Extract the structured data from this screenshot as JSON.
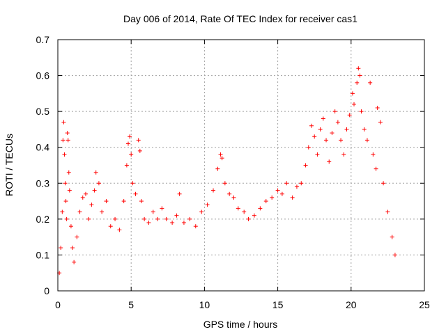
{
  "chart_data": {
    "type": "scatter",
    "title": "Day 006 of 2014, Rate Of TEC Index for receiver cas1",
    "xlabel": "GPS time / hours",
    "ylabel": "ROTI / TECUs",
    "xlim": [
      0,
      25
    ],
    "ylim": [
      0,
      0.7
    ],
    "xticks": [
      0,
      5,
      10,
      15,
      20,
      25
    ],
    "yticks": [
      0,
      0.1,
      0.2,
      0.3,
      0.4,
      0.5,
      0.6,
      0.7
    ],
    "grid": true,
    "marker": "+",
    "color": "#ff0000",
    "series": [
      {
        "name": "cas1",
        "points": [
          [
            0.1,
            0.05
          ],
          [
            0.2,
            0.12
          ],
          [
            0.3,
            0.22
          ],
          [
            0.35,
            0.42
          ],
          [
            0.4,
            0.47
          ],
          [
            0.45,
            0.38
          ],
          [
            0.5,
            0.3
          ],
          [
            0.55,
            0.25
          ],
          [
            0.6,
            0.2
          ],
          [
            0.65,
            0.44
          ],
          [
            0.7,
            0.42
          ],
          [
            0.75,
            0.33
          ],
          [
            0.8,
            0.28
          ],
          [
            0.9,
            0.18
          ],
          [
            1.0,
            0.12
          ],
          [
            1.1,
            0.08
          ],
          [
            1.3,
            0.15
          ],
          [
            1.5,
            0.22
          ],
          [
            1.7,
            0.26
          ],
          [
            1.9,
            0.27
          ],
          [
            2.1,
            0.2
          ],
          [
            2.3,
            0.24
          ],
          [
            2.5,
            0.28
          ],
          [
            2.6,
            0.33
          ],
          [
            2.8,
            0.3
          ],
          [
            3.0,
            0.22
          ],
          [
            3.3,
            0.25
          ],
          [
            3.6,
            0.18
          ],
          [
            3.9,
            0.2
          ],
          [
            4.2,
            0.17
          ],
          [
            4.5,
            0.25
          ],
          [
            4.7,
            0.35
          ],
          [
            4.8,
            0.41
          ],
          [
            4.9,
            0.43
          ],
          [
            5.0,
            0.38
          ],
          [
            5.1,
            0.3
          ],
          [
            5.3,
            0.27
          ],
          [
            5.5,
            0.42
          ],
          [
            5.6,
            0.39
          ],
          [
            5.7,
            0.25
          ],
          [
            5.9,
            0.2
          ],
          [
            6.2,
            0.19
          ],
          [
            6.5,
            0.22
          ],
          [
            6.8,
            0.2
          ],
          [
            7.1,
            0.23
          ],
          [
            7.4,
            0.2
          ],
          [
            7.8,
            0.19
          ],
          [
            8.1,
            0.21
          ],
          [
            8.3,
            0.27
          ],
          [
            8.6,
            0.19
          ],
          [
            9.0,
            0.2
          ],
          [
            9.4,
            0.18
          ],
          [
            9.8,
            0.22
          ],
          [
            10.2,
            0.24
          ],
          [
            10.6,
            0.28
          ],
          [
            10.9,
            0.34
          ],
          [
            11.1,
            0.38
          ],
          [
            11.2,
            0.37
          ],
          [
            11.4,
            0.3
          ],
          [
            11.7,
            0.27
          ],
          [
            12.0,
            0.26
          ],
          [
            12.3,
            0.23
          ],
          [
            12.7,
            0.22
          ],
          [
            13.0,
            0.2
          ],
          [
            13.4,
            0.21
          ],
          [
            13.8,
            0.23
          ],
          [
            14.2,
            0.25
          ],
          [
            14.6,
            0.26
          ],
          [
            15.0,
            0.28
          ],
          [
            15.3,
            0.27
          ],
          [
            15.6,
            0.3
          ],
          [
            16.0,
            0.26
          ],
          [
            16.3,
            0.29
          ],
          [
            16.6,
            0.3
          ],
          [
            16.9,
            0.35
          ],
          [
            17.1,
            0.4
          ],
          [
            17.3,
            0.46
          ],
          [
            17.5,
            0.43
          ],
          [
            17.7,
            0.38
          ],
          [
            17.9,
            0.45
          ],
          [
            18.1,
            0.48
          ],
          [
            18.3,
            0.42
          ],
          [
            18.5,
            0.36
          ],
          [
            18.7,
            0.44
          ],
          [
            18.9,
            0.5
          ],
          [
            19.1,
            0.47
          ],
          [
            19.3,
            0.42
          ],
          [
            19.5,
            0.38
          ],
          [
            19.7,
            0.45
          ],
          [
            19.9,
            0.49
          ],
          [
            20.1,
            0.55
          ],
          [
            20.2,
            0.52
          ],
          [
            20.4,
            0.58
          ],
          [
            20.5,
            0.62
          ],
          [
            20.6,
            0.6
          ],
          [
            20.7,
            0.5
          ],
          [
            20.9,
            0.45
          ],
          [
            21.1,
            0.42
          ],
          [
            21.3,
            0.58
          ],
          [
            21.5,
            0.38
          ],
          [
            21.7,
            0.34
          ],
          [
            21.8,
            0.51
          ],
          [
            22.0,
            0.47
          ],
          [
            22.2,
            0.3
          ],
          [
            22.5,
            0.22
          ],
          [
            22.8,
            0.15
          ],
          [
            23.0,
            0.1
          ]
        ]
      }
    ]
  }
}
